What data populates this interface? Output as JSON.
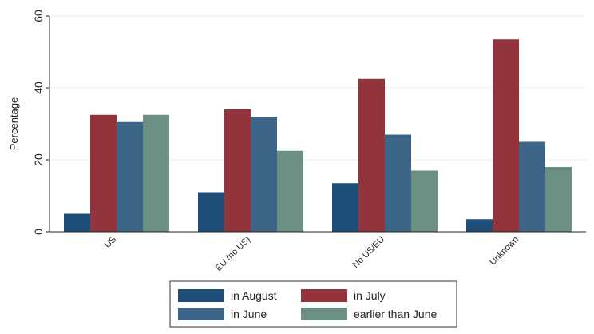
{
  "chart_data": {
    "type": "bar",
    "title": "",
    "xlabel": "",
    "ylabel": "Percentage",
    "ylim": [
      0,
      60
    ],
    "yticks": [
      0,
      20,
      40,
      60
    ],
    "grid": true,
    "legend_position": "bottom",
    "categories": [
      "US",
      "EU (no US)",
      "No US/EU",
      "Unknown"
    ],
    "series": [
      {
        "name": "in August",
        "color": "#1f4e79",
        "values": [
          5,
          11,
          13.5,
          3.5
        ]
      },
      {
        "name": "in July",
        "color": "#93343c",
        "values": [
          32.5,
          34,
          42.5,
          53.5
        ]
      },
      {
        "name": "in June",
        "color": "#3d6587",
        "values": [
          30.5,
          32,
          27,
          25
        ]
      },
      {
        "name": "earlier than June",
        "color": "#6b9081",
        "values": [
          32.5,
          22.5,
          17,
          18
        ]
      }
    ]
  }
}
